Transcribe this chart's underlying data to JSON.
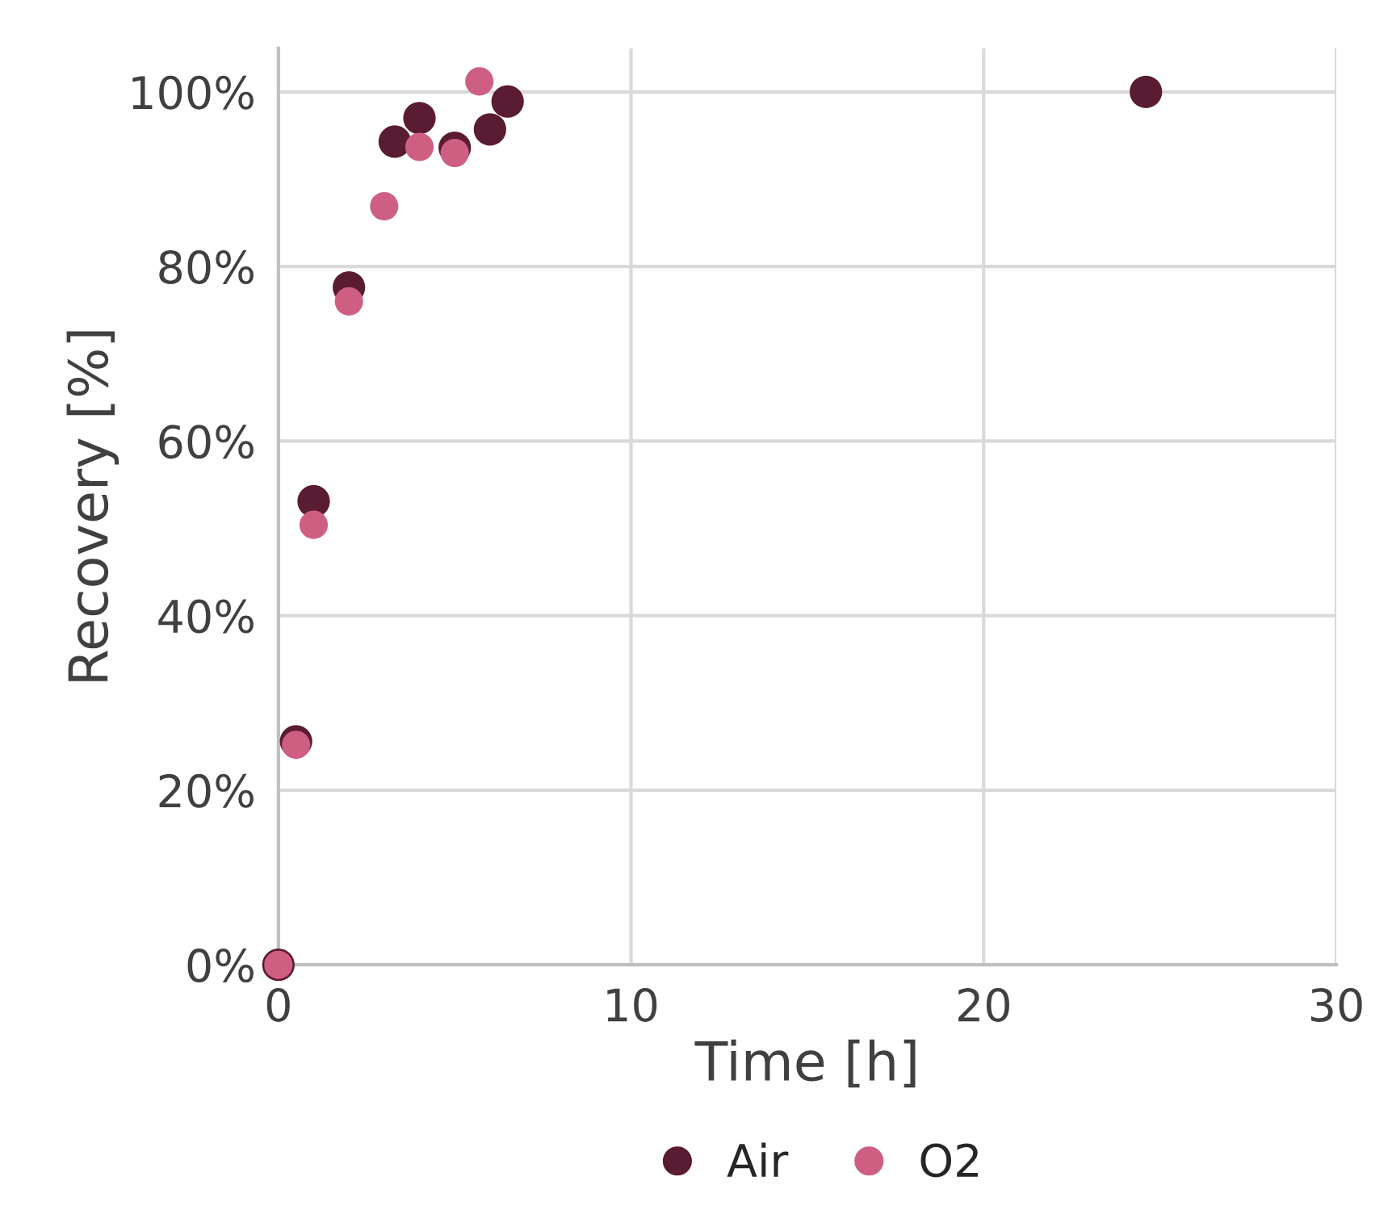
{
  "chart_data": {
    "type": "scatter",
    "xlabel": "Time [h]",
    "ylabel": "Recovery [%]",
    "xlim": [
      0,
      30
    ],
    "xticks": [
      0,
      10,
      20,
      30
    ],
    "ylim": [
      0,
      105
    ],
    "yticks": [
      {
        "value": 0,
        "label": "0%"
      },
      {
        "value": 20,
        "label": "20%"
      },
      {
        "value": 40,
        "label": "40%"
      },
      {
        "value": 60,
        "label": "60%"
      },
      {
        "value": 80,
        "label": "80%"
      },
      {
        "value": 100,
        "label": "100%"
      }
    ],
    "grid": true,
    "legend": "bottom",
    "marker": "circle",
    "series": [
      {
        "name": "Air",
        "color": "#5a1c32",
        "x": [
          0,
          0.5,
          1,
          2,
          3.3,
          4,
          5,
          6,
          6.5,
          24.6
        ],
        "values": [
          0,
          25.6,
          53.1,
          77.6,
          94.3,
          97.0,
          93.6,
          95.7,
          98.9,
          100
        ]
      },
      {
        "name": "O2",
        "color": "#cf5f82",
        "x": [
          0,
          0.5,
          1,
          2,
          3,
          4,
          5,
          5.7
        ],
        "values": [
          0,
          25.2,
          50.4,
          76.0,
          86.9,
          93.7,
          93.0,
          101.2
        ]
      }
    ]
  }
}
